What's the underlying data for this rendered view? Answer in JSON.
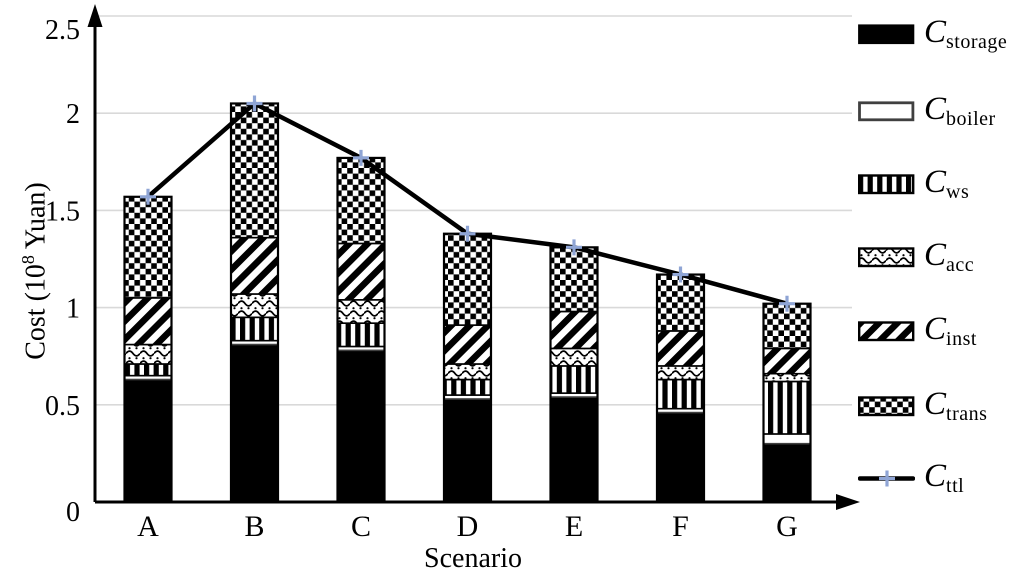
{
  "chart_data": {
    "type": "bar",
    "subtype": "stacked-bars-with-total-line-overlay",
    "title": "",
    "xlabel": "Scenario",
    "ylabel": "Cost (10^8 Yuan)",
    "ylabel_parts": {
      "pre": "Cost (10",
      "sup": "8",
      "post": " Yuan)"
    },
    "ylim": [
      0,
      2.5
    ],
    "y_ticks": [
      0,
      0.5,
      1,
      1.5,
      2,
      2.5
    ],
    "grid": "horizontal-gridlines-on",
    "legend_position": "right",
    "categories": [
      "A",
      "B",
      "C",
      "D",
      "E",
      "F",
      "G"
    ],
    "series": [
      {
        "name": "C_storage",
        "pattern": "solid-black",
        "values": [
          0.63,
          0.81,
          0.78,
          0.53,
          0.54,
          0.46,
          0.3
        ]
      },
      {
        "name": "C_boiler",
        "pattern": "white-outline",
        "values": [
          0.02,
          0.02,
          0.02,
          0.02,
          0.02,
          0.02,
          0.05
        ]
      },
      {
        "name": "C_ws",
        "pattern": "vertical-stripes",
        "values": [
          0.06,
          0.12,
          0.12,
          0.08,
          0.14,
          0.15,
          0.27
        ]
      },
      {
        "name": "C_acc",
        "pattern": "wave-dots",
        "values": [
          0.1,
          0.12,
          0.12,
          0.08,
          0.09,
          0.07,
          0.04
        ]
      },
      {
        "name": "C_inst",
        "pattern": "diagonal-stripes",
        "values": [
          0.24,
          0.29,
          0.29,
          0.2,
          0.19,
          0.18,
          0.13
        ]
      },
      {
        "name": "C_trans",
        "pattern": "checkerboard",
        "values": [
          0.52,
          0.69,
          0.44,
          0.47,
          0.33,
          0.29,
          0.23
        ]
      }
    ],
    "line_series": {
      "name": "C_ttl",
      "marker": "plus",
      "values": [
        1.57,
        2.05,
        1.77,
        1.38,
        1.31,
        1.17,
        1.02
      ]
    },
    "legend": [
      {
        "symbol": "C",
        "sub": "storage",
        "pattern": "solid-black"
      },
      {
        "symbol": "C",
        "sub": "boiler",
        "pattern": "white-outline"
      },
      {
        "symbol": "C",
        "sub": "ws",
        "pattern": "vertical-stripes"
      },
      {
        "symbol": "C",
        "sub": "acc",
        "pattern": "wave-dots"
      },
      {
        "symbol": "C",
        "sub": "inst",
        "pattern": "diagonal-stripes"
      },
      {
        "symbol": "C",
        "sub": "trans",
        "pattern": "checkerboard"
      },
      {
        "symbol": "C",
        "sub": "ttl",
        "pattern": "line-plus-marker"
      }
    ],
    "colors": {
      "bar_fill": "#000000",
      "bar_outline": "#000000",
      "boiler_outline": "#404040",
      "gridline": "#d9d9d9",
      "line": "#000000",
      "marker": "#8fa5d5",
      "background": "#ffffff"
    }
  }
}
